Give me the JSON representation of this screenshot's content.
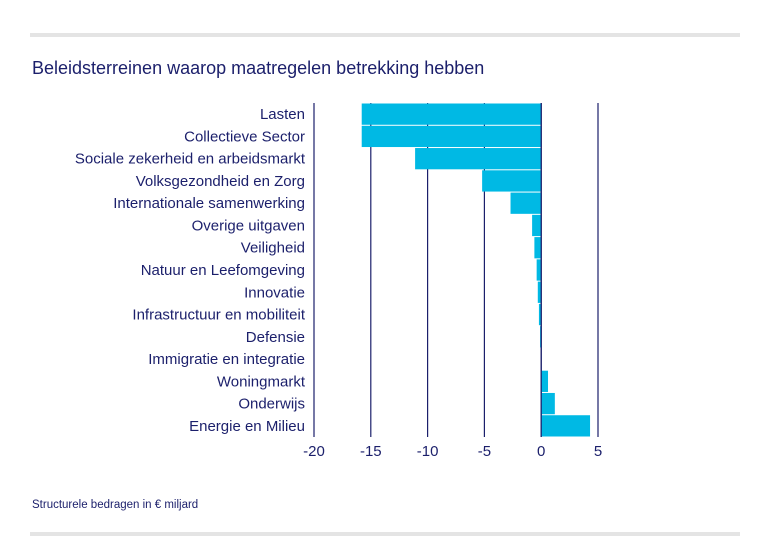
{
  "header": {
    "title": "Beleidsterreinen waarop maatregelen betrekking hebben"
  },
  "footer": {
    "note": "Structurele bedragen in € miljard"
  },
  "colors": {
    "bar": "#00b9e4",
    "axis": "#1b1f6b",
    "text": "#1b1f6b",
    "rule": "#e4e4e4"
  },
  "chart_data": {
    "type": "bar",
    "orientation": "horizontal",
    "categories": [
      "Lasten",
      "Collectieve Sector",
      "Sociale zekerheid en arbeidsmarkt",
      "Volksgezondheid en Zorg",
      "Internationale samenwerking",
      "Overige uitgaven",
      "Veiligheid",
      "Natuur en Leefomgeving",
      "Innovatie",
      "Infrastructuur en mobiliteit",
      "Defensie",
      "Immigratie en integratie",
      "Woningmarkt",
      "Onderwijs",
      "Energie en Milieu"
    ],
    "values": [
      -15.8,
      -15.8,
      -11.1,
      -5.2,
      -2.7,
      -0.8,
      -0.6,
      -0.4,
      -0.3,
      -0.2,
      -0.1,
      0.0,
      0.6,
      1.2,
      4.3
    ],
    "xlim": [
      -20,
      5
    ],
    "xticks": [
      "-20",
      "-15",
      "-10",
      "-5",
      "0",
      "5"
    ],
    "grid": "vertical",
    "legend": "none"
  }
}
